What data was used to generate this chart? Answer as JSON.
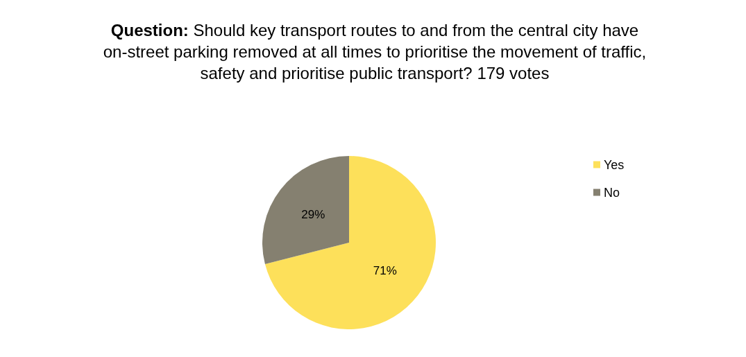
{
  "chart_data": {
    "type": "pie",
    "title": "Question: Should key transport routes to and from the central city have on-street parking removed at all times to prioritise the movement of traffic, safety and prioritise public transport? 179 votes",
    "categories": [
      "Yes",
      "No"
    ],
    "values": [
      71,
      29
    ],
    "colors": [
      "#fde05a",
      "#858070"
    ],
    "legend": "right",
    "value_labels": [
      "71%",
      "29%"
    ]
  }
}
